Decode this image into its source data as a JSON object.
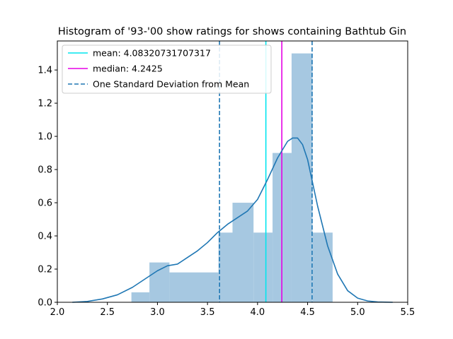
{
  "chart_data": {
    "type": "bar",
    "title": "Histogram of '93-'00 show ratings for shows containing Bathtub Gin",
    "xlabel": "",
    "ylabel": "",
    "xlim": [
      2.0,
      5.5
    ],
    "ylim": [
      0.0,
      1.575
    ],
    "xticks": [
      2.0,
      2.5,
      3.0,
      3.5,
      4.0,
      4.5,
      5.0,
      5.5
    ],
    "xtick_labels": [
      "2.0",
      "2.5",
      "3.0",
      "3.5",
      "4.0",
      "4.5",
      "5.0",
      "5.5"
    ],
    "yticks": [
      0.0,
      0.2,
      0.4,
      0.6,
      0.8,
      1.0,
      1.2,
      1.4
    ],
    "ytick_labels": [
      "0.0",
      "0.2",
      "0.4",
      "0.6",
      "0.8",
      "1.0",
      "1.2",
      "1.4"
    ],
    "grid": false,
    "legend_position": "upper-left",
    "histogram": {
      "color": "#a6c8e1",
      "bins": [
        {
          "x0": 2.74,
          "x1": 2.92,
          "density": 0.06
        },
        {
          "x0": 2.92,
          "x1": 3.12,
          "density": 0.24
        },
        {
          "x0": 3.12,
          "x1": 3.61,
          "density": 0.18
        },
        {
          "x0": 3.61,
          "x1": 3.75,
          "density": 0.42
        },
        {
          "x0": 3.75,
          "x1": 3.96,
          "density": 0.6
        },
        {
          "x0": 3.96,
          "x1": 4.15,
          "density": 0.42
        },
        {
          "x0": 4.15,
          "x1": 4.34,
          "density": 0.9
        },
        {
          "x0": 4.34,
          "x1": 4.55,
          "density": 1.5
        },
        {
          "x0": 4.55,
          "x1": 4.75,
          "density": 0.42
        }
      ]
    },
    "kde": {
      "color": "#1f77b4",
      "x": [
        2.15,
        2.3,
        2.45,
        2.6,
        2.75,
        2.9,
        3.0,
        3.1,
        3.2,
        3.3,
        3.4,
        3.5,
        3.6,
        3.7,
        3.8,
        3.9,
        4.0,
        4.1,
        4.2,
        4.3,
        4.35,
        4.4,
        4.45,
        4.5,
        4.55,
        4.6,
        4.7,
        4.8,
        4.9,
        5.0,
        5.1,
        5.2,
        5.35
      ],
      "y": [
        0.0,
        0.005,
        0.02,
        0.045,
        0.09,
        0.15,
        0.19,
        0.22,
        0.23,
        0.27,
        0.31,
        0.36,
        0.42,
        0.47,
        0.51,
        0.55,
        0.62,
        0.74,
        0.87,
        0.97,
        0.99,
        0.99,
        0.95,
        0.86,
        0.72,
        0.58,
        0.34,
        0.17,
        0.07,
        0.025,
        0.008,
        0.002,
        0.0
      ]
    },
    "series": [
      {
        "name": "mean: 4.08320731707317",
        "type": "vline",
        "x": 4.08320731707317,
        "color": "#00e5ee",
        "style": "solid"
      },
      {
        "name": "median: 4.2425",
        "type": "vline",
        "x": 4.2425,
        "color": "#e500e5",
        "style": "solid"
      },
      {
        "name": "One Standard Deviation from Mean",
        "type": "vline",
        "x": [
          3.62,
          4.545
        ],
        "color": "#1f77b4",
        "style": "dashed"
      }
    ]
  }
}
